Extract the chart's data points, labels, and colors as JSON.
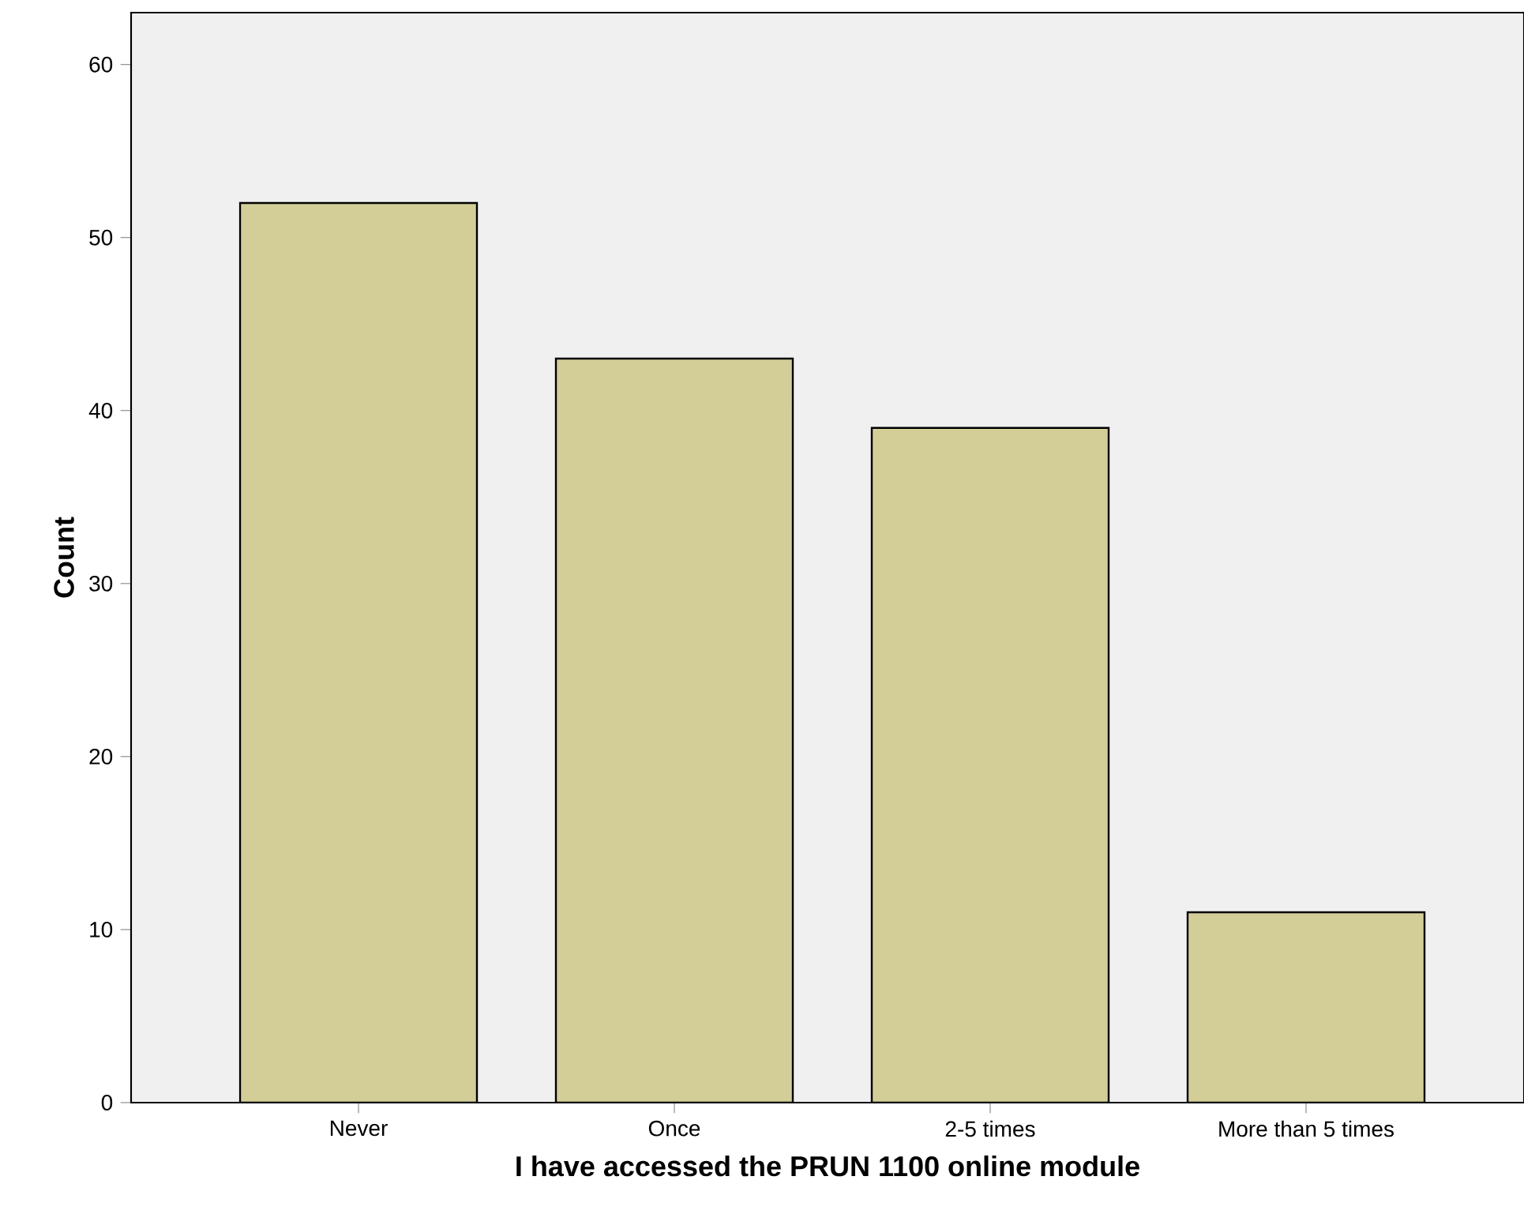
{
  "chart_data": {
    "type": "bar",
    "xlabel": "I have accessed the PRUN 1100 online module",
    "ylabel": "Count",
    "categories": [
      "Never",
      "Once",
      "2-5 times",
      "More than 5 times"
    ],
    "values": [
      52,
      43,
      39,
      11
    ],
    "color": "#d3cd97",
    "ylim": [
      0,
      63
    ],
    "yticks": [
      0,
      10,
      20,
      30,
      40,
      50,
      60
    ],
    "grid": false
  }
}
